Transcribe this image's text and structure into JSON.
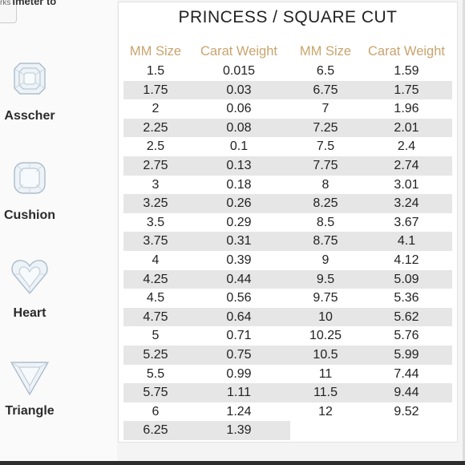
{
  "top_fragment": {
    "small": "rks",
    "text": "imeter to"
  },
  "shapes": [
    {
      "name": "asscher",
      "label": "Asscher"
    },
    {
      "name": "cushion",
      "label": "Cushion"
    },
    {
      "name": "heart",
      "label": "Heart"
    },
    {
      "name": "triangle",
      "label": "Triangle"
    }
  ],
  "table": {
    "title": "PRINCESS / SQUARE CUT",
    "headers": [
      "MM Size",
      "Carat Weight",
      "MM Size",
      "Carat Weight"
    ],
    "rows": [
      [
        "1.5",
        "0.015",
        "6.5",
        "1.59"
      ],
      [
        "1.75",
        "0.03",
        "6.75",
        "1.75"
      ],
      [
        "2",
        "0.06",
        "7",
        "1.96"
      ],
      [
        "2.25",
        "0.08",
        "7.25",
        "2.01"
      ],
      [
        "2.5",
        "0.1",
        "7.5",
        "2.4"
      ],
      [
        "2.75",
        "0.13",
        "7.75",
        "2.74"
      ],
      [
        "3",
        "0.18",
        "8",
        "3.01"
      ],
      [
        "3.25",
        "0.26",
        "8.25",
        "3.24"
      ],
      [
        "3.5",
        "0.29",
        "8.5",
        "3.67"
      ],
      [
        "3.75",
        "0.31",
        "8.75",
        "4.1"
      ],
      [
        "4",
        "0.39",
        "9",
        "4.12"
      ],
      [
        "4.25",
        "0.44",
        "9.5",
        "5.09"
      ],
      [
        "4.5",
        "0.56",
        "9.75",
        "5.36"
      ],
      [
        "4.75",
        "0.64",
        "10",
        "5.62"
      ],
      [
        "5",
        "0.71",
        "10.25",
        "5.76"
      ],
      [
        "5.25",
        "0.75",
        "10.5",
        "5.99"
      ],
      [
        "5.5",
        "0.99",
        "11",
        "7.44"
      ],
      [
        "5.75",
        "1.11",
        "11.5",
        "9.44"
      ],
      [
        "6",
        "1.24",
        "12",
        "9.52"
      ],
      [
        "6.25",
        "1.39",
        "",
        ""
      ]
    ]
  },
  "colors": {
    "header": "#c9a46d",
    "shade": "#e6e6e6",
    "text": "#222222"
  }
}
